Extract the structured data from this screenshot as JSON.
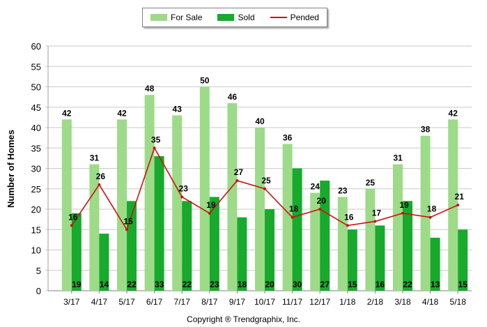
{
  "legend": {
    "for_sale": "For Sale",
    "sold": "Sold",
    "pended": "Pended"
  },
  "copyright": "Copyright ® Trendgraphix, Inc.",
  "colors": {
    "for_sale": "#9ddb88",
    "sold": "#17aa2c",
    "pended": "#cc1111",
    "grid": "#c8c8c8"
  },
  "chart_data": {
    "type": "bar",
    "categories": [
      "3/17",
      "4/17",
      "5/17",
      "6/17",
      "7/17",
      "8/17",
      "9/17",
      "10/17",
      "11/17",
      "12/17",
      "1/18",
      "2/18",
      "3/18",
      "4/18",
      "5/18"
    ],
    "series": [
      {
        "name": "For Sale",
        "type": "bar",
        "values": [
          42,
          31,
          42,
          48,
          43,
          50,
          46,
          40,
          36,
          24,
          23,
          25,
          31,
          38,
          42
        ]
      },
      {
        "name": "Sold",
        "type": "bar",
        "values": [
          19,
          14,
          22,
          33,
          22,
          23,
          18,
          20,
          30,
          27,
          15,
          16,
          22,
          13,
          15
        ]
      },
      {
        "name": "Pended",
        "type": "line",
        "values": [
          16,
          26,
          15,
          35,
          23,
          19,
          27,
          25,
          18,
          20,
          16,
          17,
          19,
          18,
          21
        ]
      }
    ],
    "xlabel": "",
    "ylabel": "Number of Homes",
    "ylim": [
      0,
      60
    ],
    "yticks": [
      0,
      5,
      10,
      15,
      20,
      25,
      30,
      35,
      40,
      45,
      50,
      55,
      60
    ],
    "grid": true,
    "legend_position": "top-center"
  }
}
